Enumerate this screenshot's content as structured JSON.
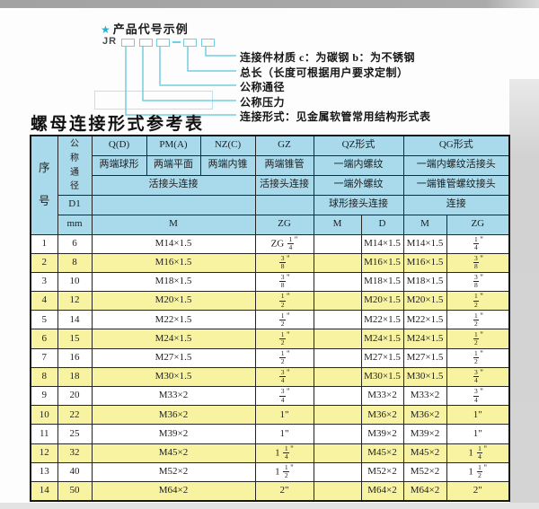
{
  "page": {
    "background": "#fdfdfd",
    "top_strip_color": "#a6a6a6",
    "right_strip_color": "#d2d2d2"
  },
  "diagram": {
    "heading": "产品代号示例",
    "prefix": "JR",
    "star_color": "#29b0da",
    "box_color": "#74cde0",
    "labels": [
      "连接件材质  c：为碳钢  b：为不锈钢",
      "总长（长度可根据用户要求定制）",
      "公称通径",
      "公称压力",
      "连接形式：见金属软管常用结构形式表"
    ]
  },
  "title": "螺母连接形式参考表",
  "table": {
    "colors": {
      "header_bg": "#a9daec",
      "alt_row_bg": "#f8f3a1",
      "row_bg": "#ffffff",
      "border": "#262626"
    },
    "header": {
      "seq": "序号",
      "dn": "公称通径",
      "d1": "D1",
      "mm": "mm",
      "q_code": "Q(D)",
      "q_ends": "两端球形",
      "pm_code": "PM(A)",
      "pm_ends": "两端平面",
      "nz_code": "NZ(C)",
      "nz_ends": "两端内锥",
      "gz_code": "GZ",
      "gz_ends": "两端锥管",
      "gz_row3": "活接头连接",
      "gz_unit": "ZG",
      "qpmnz_row3": "活接头连接",
      "qpmnz_unit": "M",
      "qz_code": "QZ形式",
      "qz_ends": "一端内螺纹",
      "qz_row3": "一端外螺纹",
      "qz_row4": "球形接头连接",
      "qz_u1": "M",
      "qz_u2": "D",
      "qg_code": "QG形式",
      "qg_ends": "一端内螺纹活接头",
      "qg_row3": "一端锥管螺纹接头",
      "qg_row4": "连接",
      "qg_u1": "M",
      "qg_u2": "ZG"
    },
    "rows": [
      {
        "seq": "1",
        "dn": "6",
        "m": "M14×1.5",
        "gz": "ZG 1/4\"",
        "qz_m": "",
        "qz_d": "M14×1.5",
        "qg_m": "M14×1.5",
        "qg_zg": "1/4\""
      },
      {
        "seq": "2",
        "dn": "8",
        "m": "M16×1.5",
        "gz": "3/8\"",
        "qz_m": "",
        "qz_d": "M16×1.5",
        "qg_m": "M16×1.5",
        "qg_zg": "3/8\""
      },
      {
        "seq": "3",
        "dn": "10",
        "m": "M18×1.5",
        "gz": "3/8\"",
        "qz_m": "",
        "qz_d": "M18×1.5",
        "qg_m": "M18×1.5",
        "qg_zg": "3/8\""
      },
      {
        "seq": "4",
        "dn": "12",
        "m": "M20×1.5",
        "gz": "1/2\"",
        "qz_m": "",
        "qz_d": "M20×1.5",
        "qg_m": "M20×1.5",
        "qg_zg": "1/2\""
      },
      {
        "seq": "5",
        "dn": "14",
        "m": "M22×1.5",
        "gz": "1/2\"",
        "qz_m": "",
        "qz_d": "M22×1.5",
        "qg_m": "M22×1.5",
        "qg_zg": "1/2\""
      },
      {
        "seq": "6",
        "dn": "15",
        "m": "M24×1.5",
        "gz": "1/2\"",
        "qz_m": "",
        "qz_d": "M24×1.5",
        "qg_m": "M24×1.5",
        "qg_zg": "1/2\""
      },
      {
        "seq": "7",
        "dn": "16",
        "m": "M27×1.5",
        "gz": "1/2\"",
        "qz_m": "",
        "qz_d": "M27×1.5",
        "qg_m": "M27×1.5",
        "qg_zg": "1/2\""
      },
      {
        "seq": "8",
        "dn": "18",
        "m": "M30×1.5",
        "gz": "3/4\"",
        "qz_m": "",
        "qz_d": "M30×1.5",
        "qg_m": "M30×1.5",
        "qg_zg": "3/4\""
      },
      {
        "seq": "9",
        "dn": "20",
        "m": "M33×2",
        "gz": "3/4\"",
        "qz_m": "",
        "qz_d": "M33×2",
        "qg_m": "M33×2",
        "qg_zg": "3/4\""
      },
      {
        "seq": "10",
        "dn": "22",
        "m": "M36×2",
        "gz": "1\"",
        "qz_m": "",
        "qz_d": "M36×2",
        "qg_m": "M36×2",
        "qg_zg": "1\""
      },
      {
        "seq": "11",
        "dn": "25",
        "m": "M39×2",
        "gz": "1\"",
        "qz_m": "",
        "qz_d": "M39×2",
        "qg_m": "M39×2",
        "qg_zg": "1\""
      },
      {
        "seq": "12",
        "dn": "32",
        "m": "M45×2",
        "gz": "1 1/4\"",
        "qz_m": "",
        "qz_d": "M45×2",
        "qg_m": "M45×2",
        "qg_zg": "1 1/4\""
      },
      {
        "seq": "13",
        "dn": "40",
        "m": "M52×2",
        "gz": "1 1/2\"",
        "qz_m": "",
        "qz_d": "M52×2",
        "qg_m": "M52×2",
        "qg_zg": "1 1/2\""
      },
      {
        "seq": "14",
        "dn": "50",
        "m": "M64×2",
        "gz": "2\"",
        "qz_m": "",
        "qz_d": "M64×2",
        "qg_m": "M64×2",
        "qg_zg": "2\""
      }
    ]
  }
}
